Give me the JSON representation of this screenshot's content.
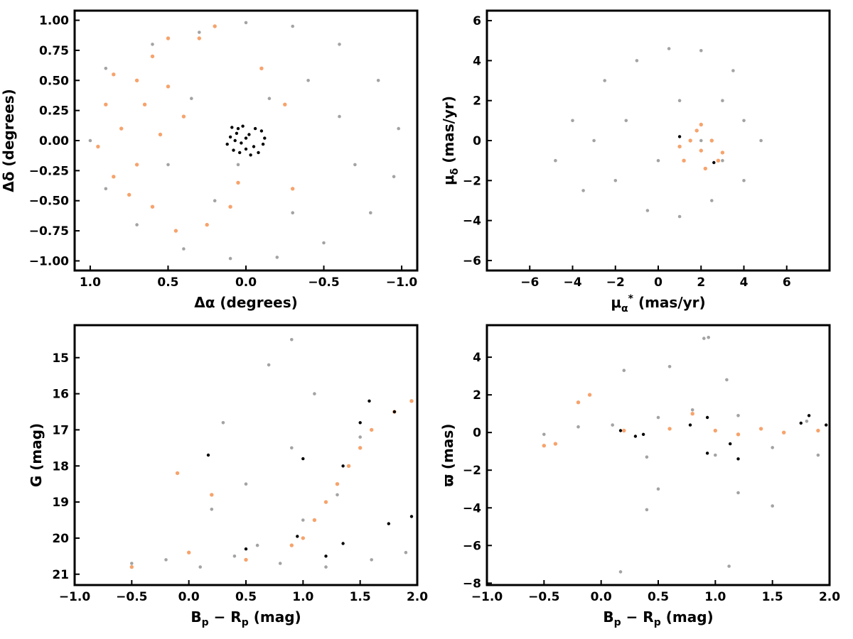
{
  "colors": {
    "field": "#a3a3a3",
    "candidate": "#f6a36c",
    "member": "#000000",
    "axes": "#000000"
  },
  "chart_data": [
    {
      "id": "sky",
      "type": "scatter",
      "xlabel": "Δα (degrees)",
      "ylabel": "Δδ (degrees)",
      "xlim": [
        1.1,
        -1.1
      ],
      "ylim": [
        -1.08,
        1.08
      ],
      "xticks": [
        1.0,
        0.5,
        0.0,
        -0.5,
        -1.0
      ],
      "xtick_labels": [
        "1.0",
        "0.5",
        "0.0",
        "−0.5",
        "−1.0"
      ],
      "yticks": [
        1.0,
        0.75,
        0.5,
        0.25,
        0.0,
        -0.25,
        -0.5,
        -0.75,
        -1.0
      ],
      "ytick_labels": [
        "1.00",
        "0.75",
        "0.50",
        "0.25",
        "0.00",
        "−0.25",
        "−0.50",
        "−0.75",
        "−1.00"
      ],
      "grid": false,
      "series": [
        {
          "points": [
            [
              0.9,
              0.6
            ],
            [
              0.6,
              0.8
            ],
            [
              0.3,
              0.9
            ],
            [
              0.0,
              0.98
            ],
            [
              -0.3,
              0.95
            ],
            [
              -0.6,
              0.8
            ],
            [
              -0.85,
              0.5
            ],
            [
              -0.98,
              0.1
            ],
            [
              -0.95,
              -0.3
            ],
            [
              -0.8,
              -0.6
            ],
            [
              -0.5,
              -0.85
            ],
            [
              -0.2,
              -0.97
            ],
            [
              0.1,
              -0.98
            ],
            [
              0.4,
              -0.9
            ],
            [
              0.7,
              -0.7
            ],
            [
              0.9,
              -0.4
            ],
            [
              1.0,
              0.0
            ],
            [
              -0.4,
              0.5
            ],
            [
              -0.6,
              0.2
            ],
            [
              -0.7,
              -0.2
            ],
            [
              -0.3,
              -0.6
            ],
            [
              0.2,
              -0.5
            ],
            [
              0.5,
              -0.2
            ],
            [
              0.35,
              0.35
            ],
            [
              -0.15,
              0.35
            ],
            [
              0.05,
              -0.2
            ]
          ]
        },
        {
          "points": [
            [
              0.9,
              0.3
            ],
            [
              0.8,
              0.1
            ],
            [
              0.95,
              -0.05
            ],
            [
              0.85,
              -0.3
            ],
            [
              0.7,
              0.5
            ],
            [
              0.6,
              0.7
            ],
            [
              0.5,
              0.85
            ],
            [
              0.3,
              0.85
            ],
            [
              0.2,
              0.95
            ],
            [
              0.75,
              -0.45
            ],
            [
              0.6,
              -0.55
            ],
            [
              0.45,
              -0.75
            ],
            [
              0.25,
              -0.7
            ],
            [
              0.4,
              0.2
            ],
            [
              0.55,
              0.05
            ],
            [
              0.65,
              0.3
            ],
            [
              -0.25,
              0.3
            ],
            [
              -0.3,
              -0.4
            ],
            [
              0.05,
              -0.35
            ],
            [
              0.1,
              -0.55
            ],
            [
              -0.1,
              0.6
            ],
            [
              0.85,
              0.55
            ],
            [
              0.7,
              -0.2
            ],
            [
              0.5,
              0.45
            ]
          ]
        },
        {
          "points": [
            [
              0.0,
              0.02
            ],
            [
              0.05,
              0.1
            ],
            [
              -0.05,
              -0.05
            ],
            [
              0.08,
              -0.08
            ],
            [
              -0.1,
              0.08
            ],
            [
              0.02,
              0.12
            ],
            [
              -0.03,
              -0.12
            ],
            [
              0.1,
              0.03
            ],
            [
              -0.12,
              0.02
            ],
            [
              0.06,
              0.06
            ],
            [
              -0.06,
              0.1
            ],
            [
              0.03,
              -0.02
            ],
            [
              -0.08,
              -0.1
            ],
            [
              0.12,
              -0.03
            ],
            [
              0.0,
              -0.07
            ],
            [
              0.07,
              0.0
            ],
            [
              -0.02,
              0.05
            ],
            [
              0.04,
              -0.1
            ],
            [
              -0.11,
              -0.03
            ],
            [
              0.09,
              0.11
            ]
          ]
        }
      ]
    },
    {
      "id": "pm",
      "type": "scatter",
      "xlabel": "μα* (mas/yr)",
      "ylabel": "μδ (mas/yr)",
      "xlim": [
        -8,
        8
      ],
      "ylim": [
        -6.5,
        6.5
      ],
      "xticks": [
        -6,
        -4,
        -2,
        0,
        2,
        4,
        6
      ],
      "xtick_labels": [
        "−6",
        "−4",
        "−2",
        "0",
        "2",
        "4",
        "6"
      ],
      "yticks": [
        6,
        4,
        2,
        0,
        -2,
        -4,
        -6
      ],
      "ytick_labels": [
        "6",
        "4",
        "2",
        "0",
        "−2",
        "−4",
        "−6"
      ],
      "grid": false,
      "series": [
        {
          "points": [
            [
              2,
              0
            ],
            [
              3,
              2
            ],
            [
              4,
              1
            ],
            [
              4.8,
              0
            ],
            [
              4,
              -2
            ],
            [
              2.5,
              -3
            ],
            [
              1,
              -3.8
            ],
            [
              -0.5,
              -3.5
            ],
            [
              -2,
              -2
            ],
            [
              -3,
              0
            ],
            [
              -4,
              1
            ],
            [
              -2.5,
              3
            ],
            [
              -1,
              4
            ],
            [
              0.5,
              4.6
            ],
            [
              2,
              4.5
            ],
            [
              3.5,
              3.5
            ],
            [
              1,
              2
            ],
            [
              0,
              -1
            ],
            [
              3,
              -1
            ],
            [
              -1.5,
              1
            ],
            [
              -4.8,
              -1
            ],
            [
              -3.5,
              -2.5
            ]
          ]
        },
        {
          "points": [
            [
              2,
              -0.5
            ],
            [
              1.5,
              0
            ],
            [
              2.5,
              0
            ],
            [
              1.2,
              -1
            ],
            [
              2.8,
              -1
            ],
            [
              1.8,
              0.5
            ],
            [
              2.2,
              -1.4
            ],
            [
              1,
              -0.3
            ],
            [
              3,
              -0.6
            ],
            [
              2,
              0.8
            ]
          ]
        },
        {
          "points": [
            [
              1,
              0.2
            ],
            [
              2.6,
              -1.1
            ]
          ]
        }
      ]
    },
    {
      "id": "cmd",
      "type": "scatter",
      "xlabel": "Bp − Rp (mag)",
      "ylabel": "G (mag)",
      "xlim": [
        -1.0,
        2.0
      ],
      "ylim": [
        21.3,
        14.1
      ],
      "xticks": [
        -1.0,
        -0.5,
        0.0,
        0.5,
        1.0,
        1.5,
        2.0
      ],
      "xtick_labels": [
        "−1.0",
        "−0.5",
        "0.0",
        "0.5",
        "1.0",
        "1.5",
        "2.0"
      ],
      "yticks": [
        21,
        20,
        19,
        18,
        17,
        16,
        15
      ],
      "ytick_labels": [
        "21",
        "20",
        "19",
        "18",
        "17",
        "16",
        "15"
      ],
      "grid": false,
      "series": [
        {
          "points": [
            [
              -0.5,
              20.7
            ],
            [
              -0.2,
              20.6
            ],
            [
              0.1,
              20.8
            ],
            [
              0.4,
              20.5
            ],
            [
              0.8,
              20.7
            ],
            [
              1.2,
              20.8
            ],
            [
              1.6,
              20.6
            ],
            [
              1.9,
              20.4
            ],
            [
              0.6,
              20.2
            ],
            [
              1.0,
              19.5
            ],
            [
              1.3,
              18.8
            ],
            [
              0.2,
              19.2
            ],
            [
              0.5,
              18.5
            ],
            [
              1.4,
              18.0
            ],
            [
              1.5,
              17.2
            ],
            [
              1.8,
              16.5
            ],
            [
              0.9,
              17.5
            ],
            [
              0.3,
              16.8
            ],
            [
              1.1,
              16.0
            ],
            [
              0.7,
              15.2
            ],
            [
              0.9,
              14.5
            ]
          ]
        },
        {
          "points": [
            [
              -0.5,
              20.8
            ],
            [
              0.0,
              20.4
            ],
            [
              0.5,
              20.6
            ],
            [
              0.9,
              20.2
            ],
            [
              1.1,
              19.5
            ],
            [
              1.2,
              19.0
            ],
            [
              1.3,
              18.5
            ],
            [
              1.4,
              18.0
            ],
            [
              1.5,
              17.5
            ],
            [
              1.6,
              17.0
            ],
            [
              1.8,
              16.5
            ],
            [
              1.95,
              16.2
            ],
            [
              0.2,
              18.8
            ],
            [
              -0.1,
              18.2
            ],
            [
              1.0,
              20.0
            ]
          ]
        },
        {
          "points": [
            [
              0.5,
              20.3
            ],
            [
              0.95,
              19.95
            ],
            [
              1.2,
              20.5
            ],
            [
              1.35,
              20.15
            ],
            [
              0.17,
              17.7
            ],
            [
              1.5,
              16.8
            ],
            [
              1.58,
              16.2
            ],
            [
              1.8,
              16.5
            ],
            [
              1.75,
              19.6
            ],
            [
              1.95,
              19.4
            ],
            [
              1.0,
              17.8
            ],
            [
              1.35,
              18.0
            ]
          ]
        }
      ]
    },
    {
      "id": "plx",
      "type": "scatter",
      "xlabel": "Bp − Rp (mag)",
      "ylabel": "ϖ (mas)",
      "xlim": [
        -1.0,
        2.0
      ],
      "ylim": [
        -8.1,
        5.7
      ],
      "xticks": [
        -1.0,
        -0.5,
        0.0,
        0.5,
        1.0,
        1.5,
        2.0
      ],
      "xtick_labels": [
        "−1.0",
        "−0.5",
        "0.0",
        "0.5",
        "1.0",
        "1.5",
        "2.0"
      ],
      "yticks": [
        4,
        2,
        0,
        -2,
        -4,
        -6,
        -8
      ],
      "ytick_labels": [
        "4",
        "2",
        "0",
        "−2",
        "−4",
        "−6",
        "−8"
      ],
      "grid": false,
      "series": [
        {
          "points": [
            [
              -0.5,
              -0.1
            ],
            [
              -0.2,
              0.3
            ],
            [
              0.1,
              0.4
            ],
            [
              0.5,
              0.8
            ],
            [
              0.8,
              1.2
            ],
            [
              1.0,
              -1.2
            ],
            [
              1.2,
              0.9
            ],
            [
              1.5,
              -0.8
            ],
            [
              1.8,
              0.6
            ],
            [
              0.4,
              -1.3
            ],
            [
              0.9,
              5.0
            ],
            [
              0.94,
              5.05
            ],
            [
              1.1,
              2.8
            ],
            [
              0.6,
              3.5
            ],
            [
              0.5,
              -3.0
            ],
            [
              1.2,
              -3.2
            ],
            [
              0.17,
              -7.4
            ],
            [
              1.12,
              -7.1
            ],
            [
              0.4,
              -4.1
            ],
            [
              1.5,
              -3.9
            ],
            [
              1.9,
              -1.2
            ],
            [
              0.2,
              3.3
            ]
          ]
        },
        {
          "points": [
            [
              -0.5,
              -0.7
            ],
            [
              -0.4,
              -0.6
            ],
            [
              -0.2,
              1.6
            ],
            [
              -0.1,
              2.0
            ],
            [
              0.2,
              0.1
            ],
            [
              0.6,
              0.2
            ],
            [
              1.0,
              0.1
            ],
            [
              1.2,
              -0.1
            ],
            [
              1.4,
              0.2
            ],
            [
              1.6,
              0.0
            ],
            [
              1.9,
              0.1
            ],
            [
              0.8,
              1.0
            ]
          ]
        },
        {
          "points": [
            [
              0.17,
              0.1
            ],
            [
              0.37,
              -0.1
            ],
            [
              0.78,
              0.4
            ],
            [
              0.93,
              0.8
            ],
            [
              0.93,
              -1.1
            ],
            [
              1.13,
              -0.6
            ],
            [
              1.2,
              -1.4
            ],
            [
              1.75,
              0.5
            ],
            [
              1.82,
              0.9
            ],
            [
              1.97,
              0.4
            ],
            [
              0.3,
              -0.2
            ]
          ]
        }
      ]
    }
  ]
}
